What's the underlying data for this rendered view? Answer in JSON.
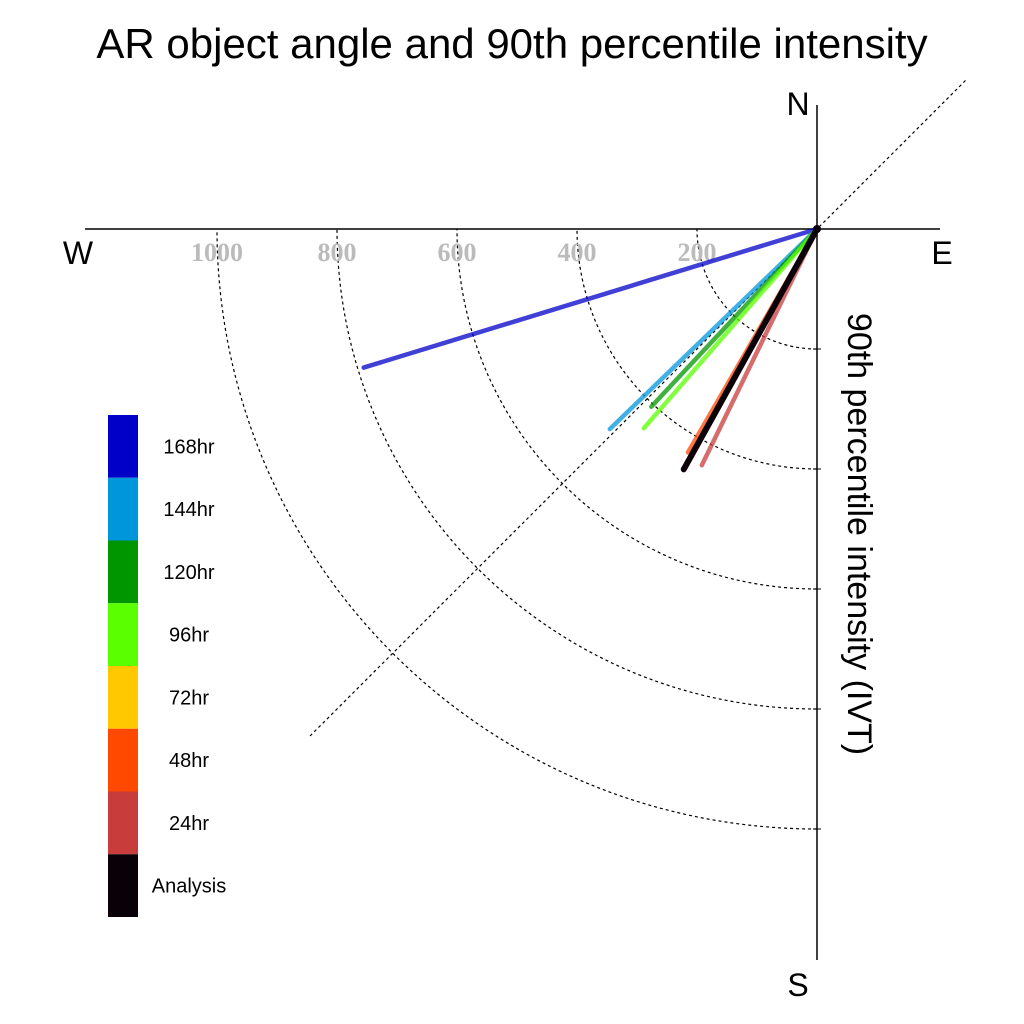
{
  "chart_data": {
    "type": "polar-vector",
    "title": "AR object angle and 90th percentile intensity",
    "ylabel": "90th percentile intensity (IVT)",
    "compass": {
      "north": "N",
      "south": "S",
      "east": "E",
      "west": "W"
    },
    "radial_ticks": [
      "200",
      "400",
      "600",
      "800",
      "1000"
    ],
    "radial_tick_values": [
      200,
      400,
      600,
      800,
      1000
    ],
    "rlim": [
      0,
      1200
    ],
    "grid": true,
    "legend_position": "left",
    "series": [
      {
        "name": "168hr",
        "color": "#0000c8",
        "angle_deg": 253,
        "intensity": 790
      },
      {
        "name": "144hr",
        "color": "#0096dc",
        "angle_deg": 226,
        "intensity": 480
      },
      {
        "name": "120hr",
        "color": "#009600",
        "angle_deg": 223,
        "intensity": 405
      },
      {
        "name": "96hr",
        "color": "#5aff00",
        "angle_deg": 221,
        "intensity": 440
      },
      {
        "name": "72hr",
        "color": "#ffc800",
        "angle_deg": 209,
        "intensity": 435
      },
      {
        "name": "48hr",
        "color": "#ff4800",
        "angle_deg": 210,
        "intensity": 430
      },
      {
        "name": "24hr",
        "color": "#c83c3c",
        "angle_deg": 206,
        "intensity": 438
      },
      {
        "name": "Analysis",
        "color": "#0a0008",
        "angle_deg": 209,
        "intensity": 458
      }
    ]
  }
}
